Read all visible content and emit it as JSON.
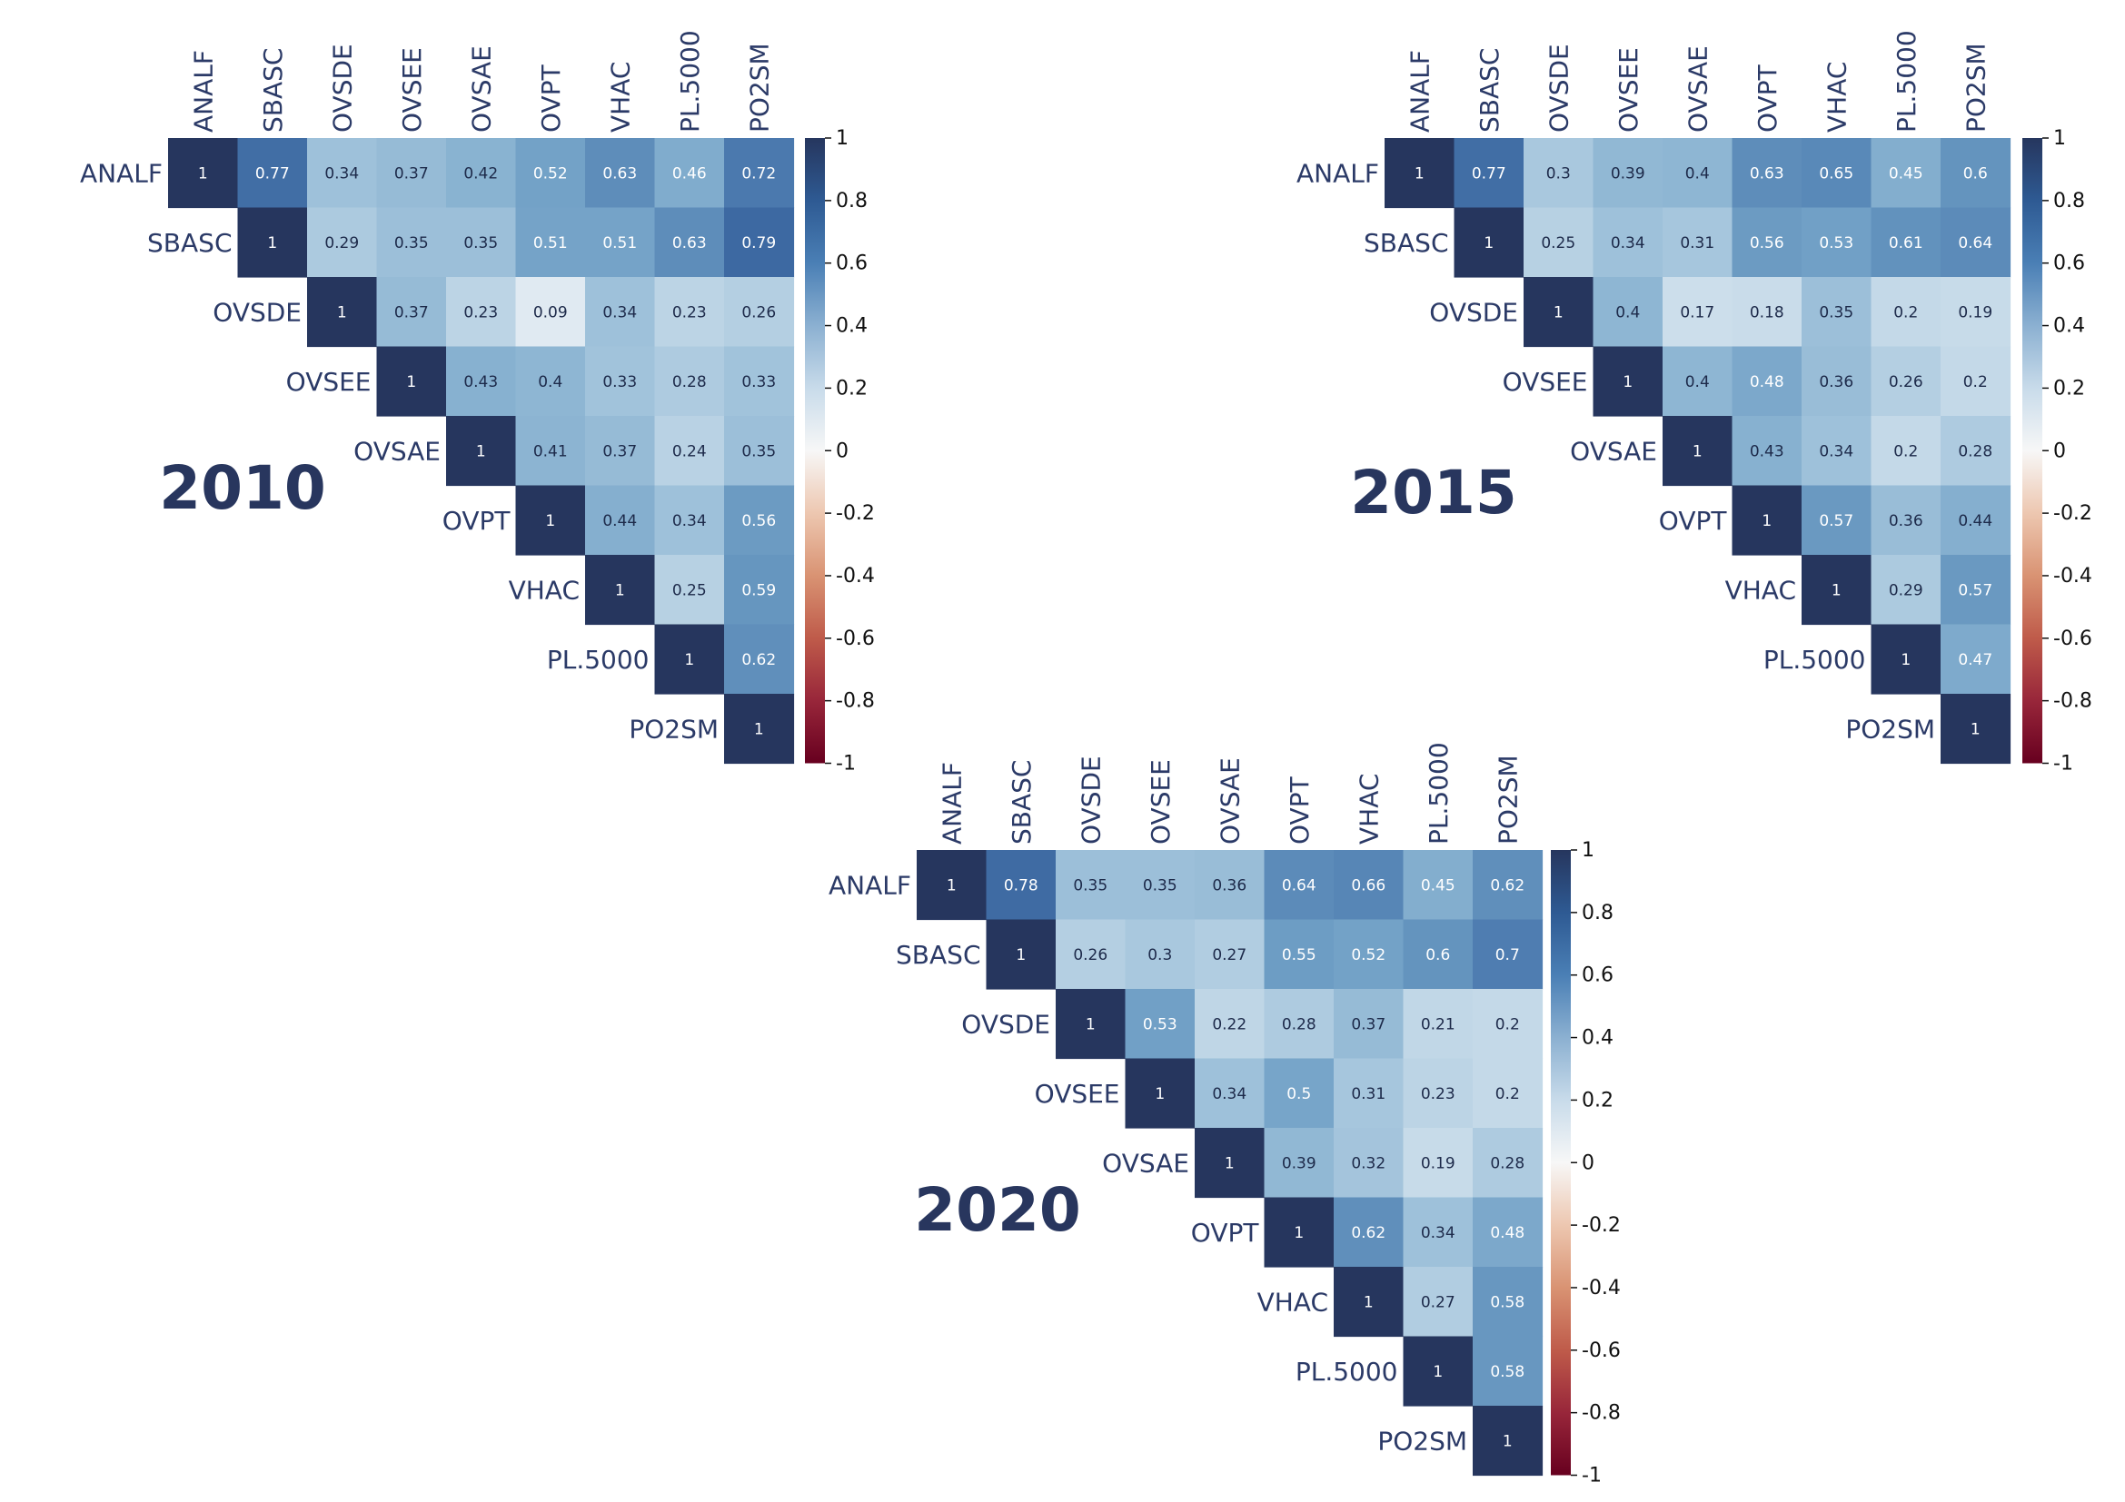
{
  "chart_data": [
    {
      "type": "heatmap",
      "title": "2010",
      "variables": [
        "ANALF",
        "SBASC",
        "OVSDE",
        "OVSEE",
        "OVSAE",
        "OVPT",
        "VHAC",
        "PL.5000",
        "PO2SM"
      ],
      "matrix_upper": [
        [
          1,
          0.77,
          0.34,
          0.37,
          0.42,
          0.52,
          0.63,
          0.46,
          0.72
        ],
        [
          1,
          0.29,
          0.35,
          0.35,
          0.51,
          0.51,
          0.63,
          0.79
        ],
        [
          1,
          0.37,
          0.23,
          0.09,
          0.34,
          0.23,
          0.26
        ],
        [
          1,
          0.43,
          0.4,
          0.33,
          0.28,
          0.33
        ],
        [
          1,
          0.41,
          0.37,
          0.24,
          0.35
        ],
        [
          1,
          0.44,
          0.34,
          0.56
        ],
        [
          1,
          0.25,
          0.59
        ],
        [
          1,
          0.62
        ],
        [
          1
        ]
      ],
      "colorbar": {
        "ticks": [
          "1",
          "0.8",
          "0.6",
          "0.4",
          "0.2",
          "0",
          "-0.2",
          "-0.4",
          "-0.6",
          "-0.8",
          "-1"
        ],
        "range": [
          -1,
          1
        ]
      }
    },
    {
      "type": "heatmap",
      "title": "2015",
      "variables": [
        "ANALF",
        "SBASC",
        "OVSDE",
        "OVSEE",
        "OVSAE",
        "OVPT",
        "VHAC",
        "PL.5000",
        "PO2SM"
      ],
      "matrix_upper": [
        [
          1,
          0.77,
          0.3,
          0.39,
          0.4,
          0.63,
          0.65,
          0.45,
          0.6
        ],
        [
          1,
          0.25,
          0.34,
          0.31,
          0.56,
          0.53,
          0.61,
          0.64
        ],
        [
          1,
          0.4,
          0.17,
          0.18,
          0.35,
          0.2,
          0.19
        ],
        [
          1,
          0.4,
          0.48,
          0.36,
          0.26,
          0.2
        ],
        [
          1,
          0.43,
          0.34,
          0.2,
          0.28
        ],
        [
          1,
          0.57,
          0.36,
          0.44
        ],
        [
          1,
          0.29,
          0.57
        ],
        [
          1,
          0.47
        ],
        [
          1
        ]
      ],
      "colorbar": {
        "ticks": [
          "1",
          "0.8",
          "0.6",
          "0.4",
          "0.2",
          "0",
          "-0.2",
          "-0.4",
          "-0.6",
          "-0.8",
          "-1"
        ],
        "range": [
          -1,
          1
        ]
      }
    },
    {
      "type": "heatmap",
      "title": "2020",
      "variables": [
        "ANALF",
        "SBASC",
        "OVSDE",
        "OVSEE",
        "OVSAE",
        "OVPT",
        "VHAC",
        "PL.5000",
        "PO2SM"
      ],
      "matrix_upper": [
        [
          1,
          0.78,
          0.35,
          0.35,
          0.36,
          0.64,
          0.66,
          0.45,
          0.62
        ],
        [
          1,
          0.26,
          0.3,
          0.27,
          0.55,
          0.52,
          0.6,
          0.7
        ],
        [
          1,
          0.53,
          0.22,
          0.28,
          0.37,
          0.21,
          0.2
        ],
        [
          1,
          0.34,
          0.5,
          0.31,
          0.23,
          0.2
        ],
        [
          1,
          0.39,
          0.32,
          0.19,
          0.28
        ],
        [
          1,
          0.62,
          0.34,
          0.48
        ],
        [
          1,
          0.27,
          0.58
        ],
        [
          1,
          0.58
        ],
        [
          1
        ]
      ],
      "colorbar": {
        "ticks": [
          "1",
          "0.8",
          "0.6",
          "0.4",
          "0.2",
          "0",
          "-0.2",
          "-0.4",
          "-0.6",
          "-0.8",
          "-1"
        ],
        "range": [
          -1,
          1
        ]
      }
    }
  ],
  "colors": {
    "scale_stops": [
      "#67001f",
      "#b2182b",
      "#d6604d",
      "#f4a582",
      "#fddbc7",
      "#f7f7f7",
      "#d1e5f0",
      "#92c5de",
      "#4393c3",
      "#2166ac",
      "#26365e"
    ],
    "label_color": "#2b3a67",
    "title_color": "#28365e"
  }
}
